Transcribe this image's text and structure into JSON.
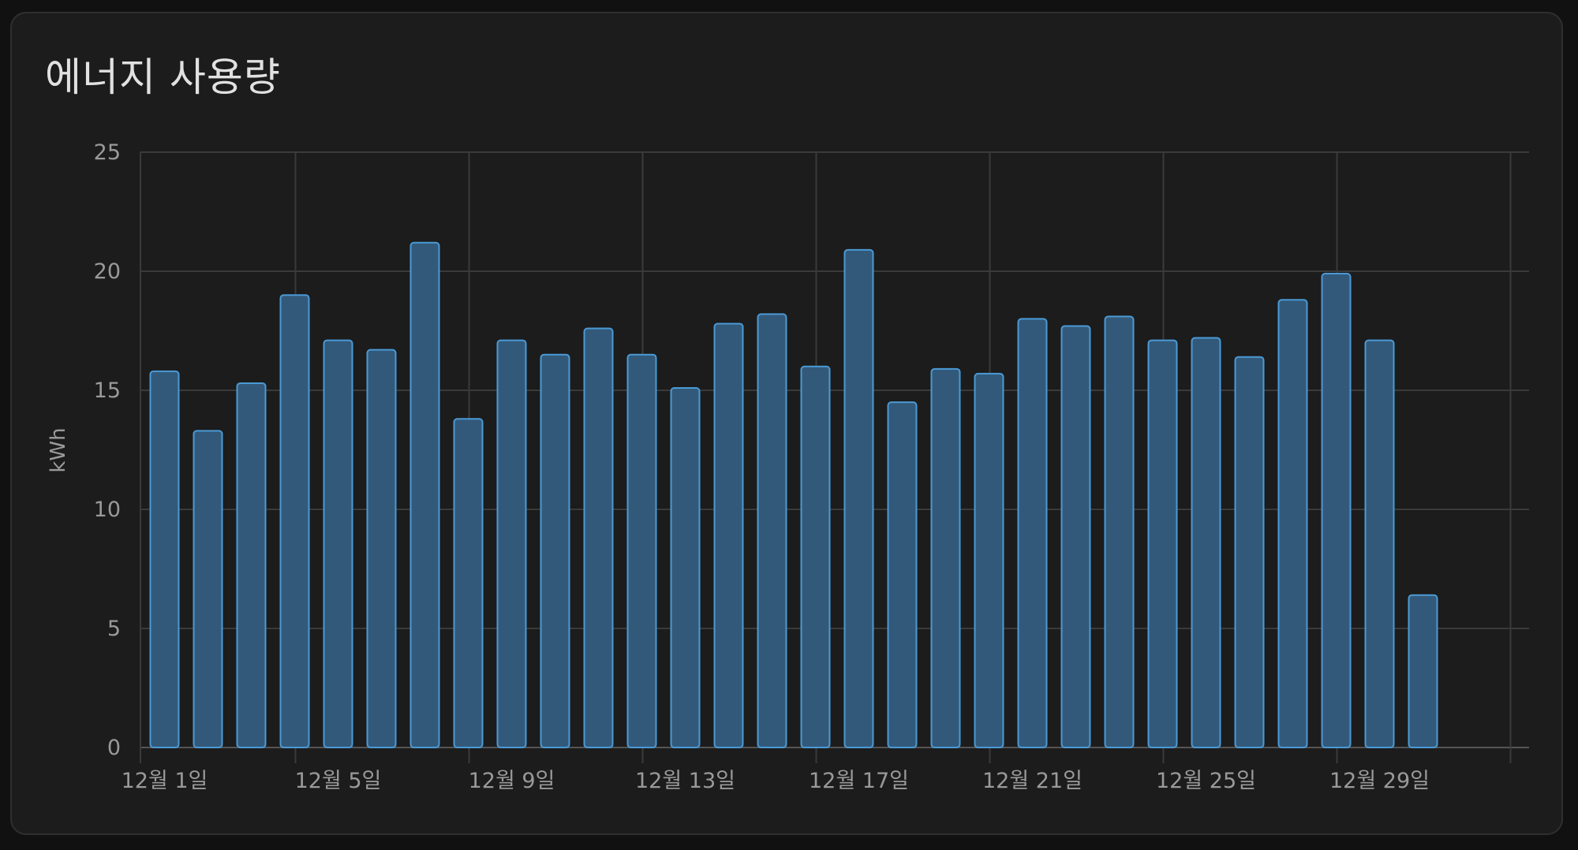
{
  "card": {
    "title": "에너지 사용량"
  },
  "colors": {
    "card_background": "#1c1c1c",
    "gridline": "#3a3a3a",
    "bar_fill": "#33597a",
    "bar_stroke": "#4a9ad6",
    "text": "#9a9a9a"
  },
  "chart_data": {
    "type": "bar",
    "title": "",
    "xlabel": "",
    "ylabel": "kWh",
    "ylim": [
      0,
      25
    ],
    "yticks": [
      0,
      5,
      10,
      15,
      20,
      25
    ],
    "grid": true,
    "legend": "none",
    "categories": [
      "12월 1일",
      "12월 2일",
      "12월 3일",
      "12월 4일",
      "12월 5일",
      "12월 6일",
      "12월 7일",
      "12월 8일",
      "12월 9일",
      "12월 10일",
      "12월 11일",
      "12월 12일",
      "12월 13일",
      "12월 14일",
      "12월 15일",
      "12월 16일",
      "12월 17일",
      "12월 18일",
      "12월 19일",
      "12월 20일",
      "12월 21일",
      "12월 22일",
      "12월 23일",
      "12월 24일",
      "12월 25일",
      "12월 26일",
      "12월 27일",
      "12월 28일",
      "12월 29일",
      "12월 30일"
    ],
    "xtick_labels": [
      "12월 1일",
      "12월 5일",
      "12월 9일",
      "12월 13일",
      "12월 17일",
      "12월 21일",
      "12월 25일",
      "12월 29일"
    ],
    "values": [
      15.8,
      13.3,
      15.3,
      19.0,
      17.1,
      16.7,
      21.2,
      13.8,
      17.1,
      16.5,
      17.6,
      16.5,
      15.1,
      17.8,
      18.2,
      16.0,
      20.9,
      14.5,
      15.9,
      15.7,
      18.0,
      17.7,
      18.1,
      17.1,
      17.2,
      16.4,
      18.8,
      19.9,
      17.1,
      6.4
    ]
  }
}
